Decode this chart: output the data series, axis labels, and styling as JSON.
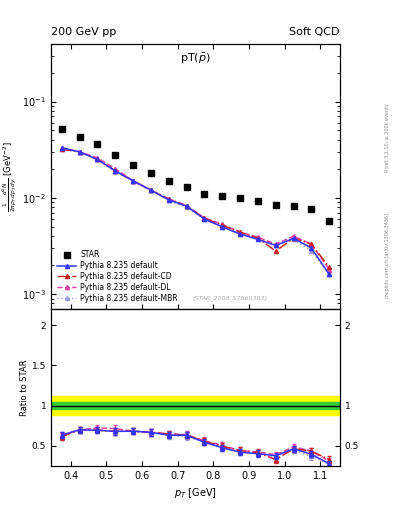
{
  "title_left": "200 GeV pp",
  "title_right": "Soft QCD",
  "plot_title": "pT($\\bar{p}$)",
  "ylabel_main": "$\\frac{1}{2\\pi p_T} \\frac{d^2N}{dp_T\\,dy}$ [GeV$^{-2}$]",
  "ylabel_ratio": "Ratio to STAR",
  "xlabel": "$p_T$ [GeV]",
  "right_label_top": "Rivet 3.1.10, ≥ 300k events",
  "right_label_bot": "mcplots.cern.ch [arXiv:1306.3436]",
  "watermark": "(STAR_2008_S7869363)",
  "star_x": [
    0.375,
    0.425,
    0.475,
    0.525,
    0.575,
    0.625,
    0.675,
    0.725,
    0.775,
    0.825,
    0.875,
    0.925,
    0.975,
    1.025,
    1.075,
    1.125
  ],
  "star_y": [
    0.052,
    0.043,
    0.036,
    0.028,
    0.022,
    0.018,
    0.015,
    0.013,
    0.011,
    0.0105,
    0.01,
    0.0092,
    0.0085,
    0.0082,
    0.0076,
    0.0058
  ],
  "py_default_x": [
    0.375,
    0.425,
    0.475,
    0.525,
    0.575,
    0.625,
    0.675,
    0.725,
    0.775,
    0.825,
    0.875,
    0.925,
    0.975,
    1.025,
    1.075,
    1.125
  ],
  "py_default_y": [
    0.033,
    0.03,
    0.025,
    0.019,
    0.015,
    0.012,
    0.0095,
    0.0082,
    0.006,
    0.005,
    0.0042,
    0.0037,
    0.0032,
    0.0038,
    0.003,
    0.0016
  ],
  "py_cd_x": [
    0.375,
    0.425,
    0.475,
    0.525,
    0.575,
    0.625,
    0.675,
    0.725,
    0.775,
    0.825,
    0.875,
    0.925,
    0.975,
    1.025,
    1.075,
    1.125
  ],
  "py_cd_y": [
    0.032,
    0.03,
    0.025,
    0.019,
    0.015,
    0.012,
    0.0097,
    0.0082,
    0.0061,
    0.0052,
    0.0044,
    0.0038,
    0.0028,
    0.0038,
    0.0033,
    0.0019
  ],
  "py_dl_x": [
    0.375,
    0.425,
    0.475,
    0.525,
    0.575,
    0.625,
    0.675,
    0.725,
    0.775,
    0.825,
    0.875,
    0.925,
    0.975,
    1.025,
    1.075,
    1.125
  ],
  "py_dl_y": [
    0.033,
    0.03,
    0.026,
    0.02,
    0.015,
    0.012,
    0.0097,
    0.0083,
    0.0062,
    0.0053,
    0.0044,
    0.0039,
    0.0033,
    0.004,
    0.0033,
    0.0018
  ],
  "py_mbr_x": [
    0.375,
    0.425,
    0.475,
    0.525,
    0.575,
    0.625,
    0.675,
    0.725,
    0.775,
    0.825,
    0.875,
    0.925,
    0.975,
    1.025,
    1.075,
    1.125
  ],
  "py_mbr_y": [
    0.032,
    0.03,
    0.025,
    0.019,
    0.015,
    0.012,
    0.0094,
    0.008,
    0.006,
    0.005,
    0.0043,
    0.0038,
    0.0032,
    0.0037,
    0.0028,
    0.0016
  ],
  "ratio_py_default": [
    0.635,
    0.698,
    0.694,
    0.679,
    0.682,
    0.667,
    0.633,
    0.631,
    0.545,
    0.476,
    0.42,
    0.402,
    0.376,
    0.463,
    0.395,
    0.276
  ],
  "ratio_py_cd": [
    0.615,
    0.698,
    0.694,
    0.679,
    0.682,
    0.667,
    0.647,
    0.631,
    0.555,
    0.495,
    0.44,
    0.413,
    0.329,
    0.463,
    0.434,
    0.328
  ],
  "ratio_py_dl": [
    0.635,
    0.698,
    0.722,
    0.714,
    0.682,
    0.667,
    0.647,
    0.638,
    0.564,
    0.505,
    0.44,
    0.424,
    0.388,
    0.488,
    0.434,
    0.31
  ],
  "ratio_py_mbr": [
    0.615,
    0.698,
    0.694,
    0.679,
    0.682,
    0.667,
    0.627,
    0.615,
    0.545,
    0.476,
    0.43,
    0.413,
    0.376,
    0.451,
    0.368,
    0.276
  ],
  "ratio_yerr": 0.04,
  "color_default": "#3333ff",
  "color_cd": "#cc2222",
  "color_dl": "#dd44aa",
  "color_mbr": "#9999dd",
  "xlim": [
    0.345,
    1.155
  ],
  "ylim_main": [
    0.0007,
    0.4
  ],
  "ylim_ratio": [
    0.25,
    2.2
  ],
  "yticks_ratio_left": [
    0.5,
    1.0,
    1.5,
    2.0
  ],
  "yticks_ratio_right": [
    0.5,
    1.0,
    2.0
  ],
  "green_band": [
    0.96,
    1.04
  ],
  "yellow_band": [
    0.88,
    1.12
  ],
  "background_color": "#ffffff"
}
